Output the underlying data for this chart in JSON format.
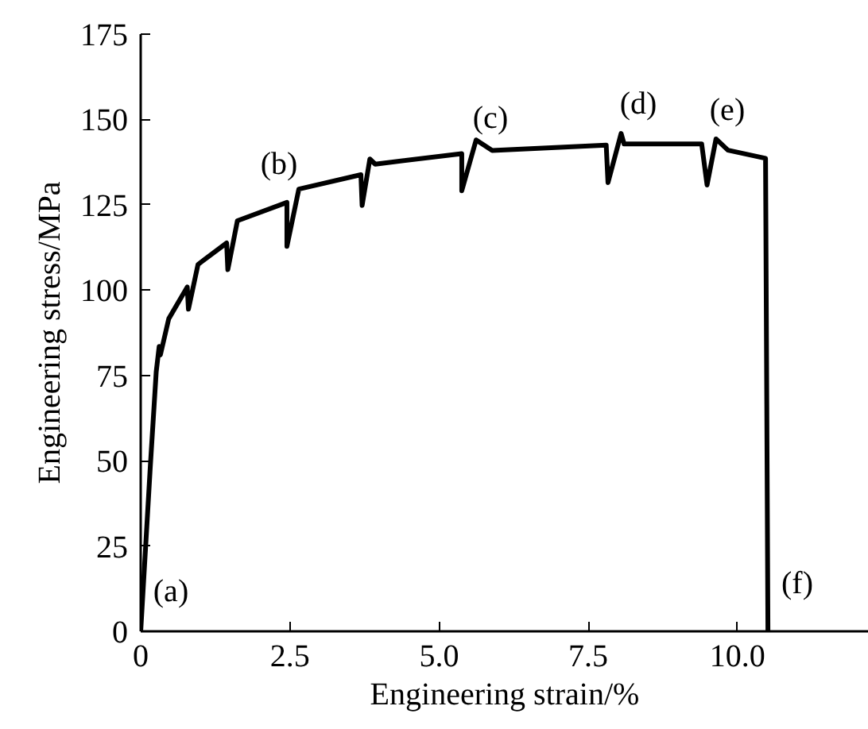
{
  "chart_data": {
    "type": "line",
    "xlabel": "Engineering strain/%",
    "ylabel": "Engineering stress/MPa",
    "series": [
      {
        "color": "#000000",
        "x": [
          0,
          0.16,
          0.26,
          0.31,
          0.33,
          0.47,
          0.78,
          0.8,
          0.96,
          1.44,
          1.46,
          1.62,
          2.45,
          2.45,
          2.65,
          3.69,
          3.71,
          3.84,
          3.93,
          5.38,
          5.38,
          5.62,
          5.89,
          7.8,
          7.83,
          8.05,
          8.1,
          9.4,
          9.49,
          9.64,
          9.84,
          10.47,
          10.51
        ],
        "values": [
          0,
          48,
          76,
          83.5,
          81,
          91.6,
          100.9,
          94.4,
          107.5,
          113.8,
          106,
          120.3,
          125.7,
          112.8,
          129.6,
          133.8,
          124.8,
          138.4,
          136.9,
          140,
          129.1,
          144,
          140.9,
          142.5,
          131.5,
          145.9,
          142.8,
          142.8,
          130.8,
          144.3,
          141,
          138.6,
          0
        ]
      }
    ],
    "annotations": [
      "(a)",
      "(b)",
      "(c)",
      "(d)",
      "(e)",
      "(f)"
    ],
    "xlim": [
      0,
      12.2
    ],
    "ylim": [
      0,
      175
    ],
    "xticks": [
      0,
      2.5,
      {
        "value": 5,
        "label": "5.0"
      },
      7.5,
      {
        "value": 10,
        "label": "10.0"
      }
    ],
    "yticks": [
      0,
      25,
      50,
      75,
      100,
      125,
      150,
      175
    ],
    "grid": false,
    "marker": "none",
    "line_style": "solid"
  }
}
